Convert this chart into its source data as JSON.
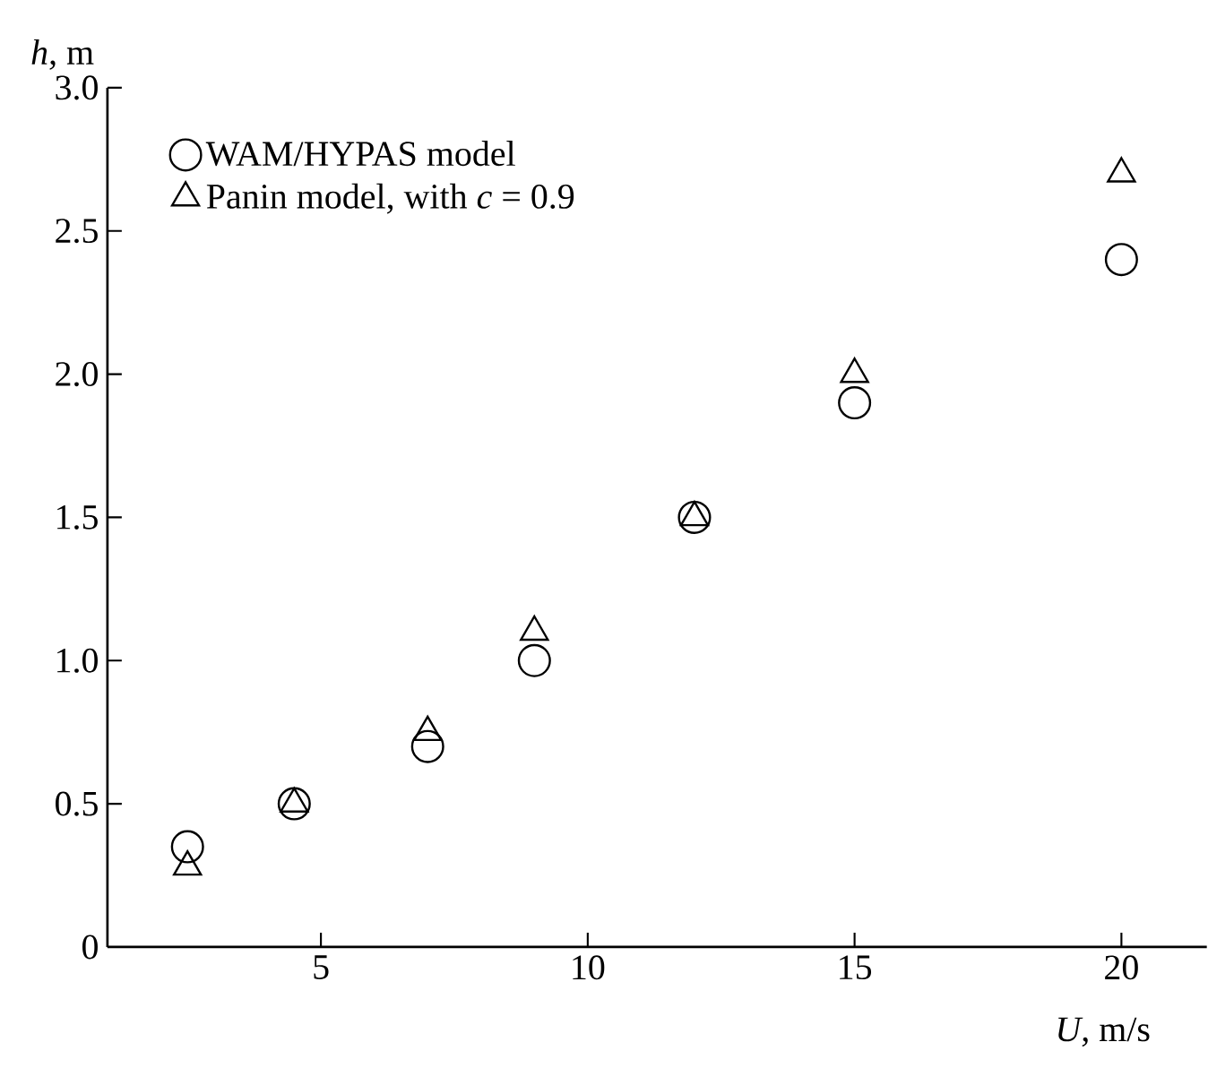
{
  "chart_data": {
    "type": "scatter",
    "xlabel": "*U*, m/s",
    "ylabel": "*h*, m",
    "x": [
      2.5,
      4.5,
      7,
      9,
      12,
      15,
      20
    ],
    "series": [
      {
        "name": "WAM/HYPAS model",
        "color": "#000000",
        "marker": "circle",
        "values": [
          0.35,
          0.5,
          0.7,
          1.0,
          1.5,
          1.9,
          2.4
        ]
      },
      {
        "name": "Panin model, with *c* = 0.9",
        "color": "#000000",
        "marker": "triangle",
        "values": [
          0.28,
          0.5,
          0.75,
          1.1,
          1.5,
          2.0,
          2.7
        ]
      }
    ],
    "xlim": [
      1,
      21.6
    ],
    "xticks": [
      5,
      10,
      15,
      20
    ],
    "ylim": [
      0,
      3
    ],
    "yticks": [
      0,
      0.5,
      {
        "value": 1,
        "label": "1.0"
      },
      1.5,
      {
        "value": 2,
        "label": "2.0"
      },
      2.5,
      {
        "value": 3,
        "label": "3.0"
      }
    ],
    "grid": false,
    "legend": "top left"
  }
}
